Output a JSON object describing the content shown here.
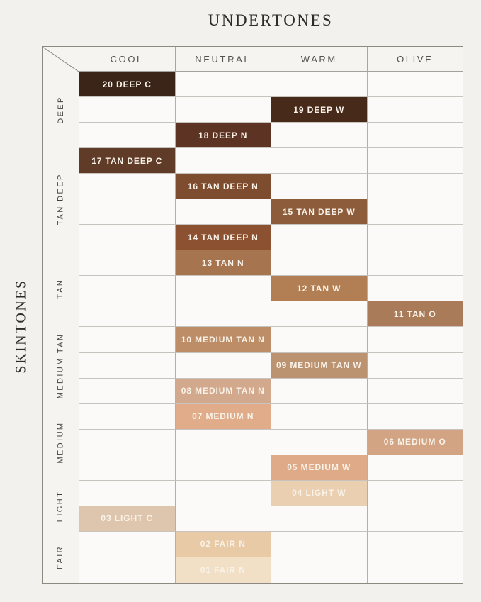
{
  "page": {
    "title": "UNDERTONES",
    "side_title": "SKINTONES"
  },
  "colors": {
    "page_bg": "#f2f1ee",
    "empty_cell_bg": "#fbfaf8",
    "frame": "#8e8981",
    "inner_line_v": "#b4afa8",
    "inner_line_h": "#c8c4bd",
    "shade_label_text": "#f9f2e8",
    "header_text": "#56514b",
    "title_text": "#2f2b26"
  },
  "chart_data": {
    "type": "table",
    "title": "UNDERTONES",
    "ylabel": "SKINTONES",
    "columns": [
      "COOL",
      "NEUTRAL",
      "WARM",
      "OLIVE"
    ],
    "row_groups": [
      {
        "label": "DEEP",
        "row_span": 3
      },
      {
        "label": "TAN DEEP",
        "row_span": 4
      },
      {
        "label": "TAN",
        "row_span": 3
      },
      {
        "label": "MEDIUM TAN",
        "row_span": 3
      },
      {
        "label": "MEDIUM",
        "row_span": 3
      },
      {
        "label": "LIGHT",
        "row_span": 2
      },
      {
        "label": "FAIR",
        "row_span": 2
      }
    ],
    "rows": [
      {
        "row": 1,
        "shade": "20 DEEP C",
        "undertone": "COOL",
        "skintone_group": "DEEP",
        "swatch_color": "#3b2518"
      },
      {
        "row": 2,
        "shade": "19 DEEP W",
        "undertone": "WARM",
        "skintone_group": "DEEP",
        "swatch_color": "#472a19"
      },
      {
        "row": 3,
        "shade": "18 DEEP N",
        "undertone": "NEUTRAL",
        "skintone_group": "DEEP",
        "swatch_color": "#5d3423"
      },
      {
        "row": 4,
        "shade": "17 TAN DEEP C",
        "undertone": "COOL",
        "skintone_group": "TAN DEEP",
        "swatch_color": "#603b27"
      },
      {
        "row": 5,
        "shade": "16 TAN DEEP N",
        "undertone": "NEUTRAL",
        "skintone_group": "TAN DEEP",
        "swatch_color": "#7e4c2e"
      },
      {
        "row": 6,
        "shade": "15 TAN DEEP W",
        "undertone": "WARM",
        "skintone_group": "TAN DEEP",
        "swatch_color": "#8d5c3a"
      },
      {
        "row": 7,
        "shade": "14 TAN DEEP N",
        "undertone": "NEUTRAL",
        "skintone_group": "TAN DEEP",
        "swatch_color": "#8b5130"
      },
      {
        "row": 8,
        "shade": "13 TAN N",
        "undertone": "NEUTRAL",
        "skintone_group": "TAN",
        "swatch_color": "#a6744f"
      },
      {
        "row": 9,
        "shade": "12 TAN W",
        "undertone": "WARM",
        "skintone_group": "TAN",
        "swatch_color": "#b17f53"
      },
      {
        "row": 10,
        "shade": "11 TAN O",
        "undertone": "OLIVE",
        "skintone_group": "TAN",
        "swatch_color": "#aa7b59"
      },
      {
        "row": 11,
        "shade": "10 MEDIUM TAN N",
        "undertone": "NEUTRAL",
        "skintone_group": "MEDIUM TAN",
        "swatch_color": "#bd8d68"
      },
      {
        "row": 12,
        "shade": "09 MEDIUM TAN W",
        "undertone": "WARM",
        "skintone_group": "MEDIUM TAN",
        "swatch_color": "#bc9371"
      },
      {
        "row": 13,
        "shade": "08 MEDIUM TAN N",
        "undertone": "NEUTRAL",
        "skintone_group": "MEDIUM TAN",
        "swatch_color": "#d3a98e"
      },
      {
        "row": 14,
        "shade": "07 MEDIUM N",
        "undertone": "NEUTRAL",
        "skintone_group": "MEDIUM",
        "swatch_color": "#e0ac89"
      },
      {
        "row": 15,
        "shade": "06 MEDIUM O",
        "undertone": "OLIVE",
        "skintone_group": "MEDIUM",
        "swatch_color": "#d2a483"
      },
      {
        "row": 16,
        "shade": "05 MEDIUM W",
        "undertone": "WARM",
        "skintone_group": "MEDIUM",
        "swatch_color": "#dfaa87"
      },
      {
        "row": 17,
        "shade": "04 LIGHT W",
        "undertone": "WARM",
        "skintone_group": "LIGHT",
        "swatch_color": "#eacfb0"
      },
      {
        "row": 18,
        "shade": "03 LIGHT C",
        "undertone": "COOL",
        "skintone_group": "LIGHT",
        "swatch_color": "#dec5ae"
      },
      {
        "row": 19,
        "shade": "02 FAIR N",
        "undertone": "NEUTRAL",
        "skintone_group": "FAIR",
        "swatch_color": "#e8caa6"
      },
      {
        "row": 20,
        "shade": "01 FAIR N",
        "undertone": "NEUTRAL",
        "skintone_group": "FAIR",
        "swatch_color": "#f1dfc6"
      }
    ]
  }
}
